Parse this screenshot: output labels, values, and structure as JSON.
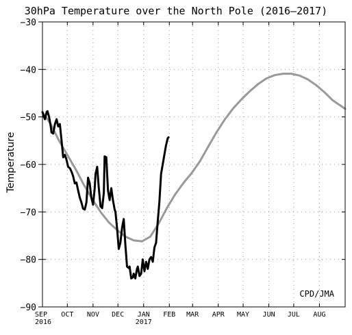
{
  "chart_data": {
    "type": "line",
    "title": "30hPa Temperature over the North Pole (2016–2017)",
    "ylabel": "Temperature",
    "xlabel": "",
    "ylim": [
      -90,
      -30
    ],
    "yticks": [
      -90,
      -80,
      -70,
      -60,
      -50,
      -40,
      -30
    ],
    "xlim": [
      0,
      365
    ],
    "xticks": [
      {
        "label": "SEP",
        "sub": "2016",
        "day": 0
      },
      {
        "label": "OCT",
        "sub": "",
        "day": 30
      },
      {
        "label": "NOV",
        "sub": "",
        "day": 61
      },
      {
        "label": "DEC",
        "sub": "",
        "day": 91
      },
      {
        "label": "JAN",
        "sub": "2017",
        "day": 122
      },
      {
        "label": "FEB",
        "sub": "",
        "day": 153
      },
      {
        "label": "MAR",
        "sub": "",
        "day": 181
      },
      {
        "label": "APR",
        "sub": "",
        "day": 212
      },
      {
        "label": "MAY",
        "sub": "",
        "day": 242
      },
      {
        "label": "JUN",
        "sub": "",
        "day": 273
      },
      {
        "label": "JUL",
        "sub": "",
        "day": 303
      },
      {
        "label": "AUG",
        "sub": "",
        "day": 334
      }
    ],
    "grid": true,
    "credit": "CPD/JMA",
    "series": [
      {
        "color": "#999999",
        "x": [
          0,
          10,
          20,
          30,
          40,
          50,
          60,
          70,
          80,
          90,
          100,
          110,
          120,
          130,
          140,
          150,
          160,
          170,
          180,
          190,
          200,
          210,
          220,
          230,
          240,
          250,
          260,
          270,
          280,
          290,
          300,
          310,
          320,
          330,
          340,
          350,
          365
        ],
        "y": [
          -49,
          -51.5,
          -55,
          -58,
          -61,
          -64.3,
          -67.3,
          -70,
          -72.2,
          -73.8,
          -75.2,
          -76,
          -76.2,
          -75.2,
          -72.5,
          -69.2,
          -66.3,
          -63.9,
          -61.8,
          -59.3,
          -56.2,
          -53.2,
          -50.5,
          -48.2,
          -46.3,
          -44.6,
          -43.1,
          -41.9,
          -41.2,
          -40.9,
          -40.9,
          -41.3,
          -42.1,
          -43.3,
          -44.8,
          -46.5,
          -48.3
        ]
      },
      {
        "color": "#000000",
        "x": [
          0,
          2,
          3,
          5,
          6,
          8,
          10,
          11,
          13,
          15,
          17,
          19,
          21,
          23,
          25,
          27,
          29,
          31,
          33,
          35,
          37,
          39,
          41,
          43,
          45,
          47,
          49,
          51,
          53,
          55,
          57,
          59,
          61,
          63,
          64,
          66,
          68,
          70,
          72,
          74,
          75,
          77,
          79,
          81,
          83,
          85,
          87,
          88,
          90,
          92,
          94,
          96,
          98,
          100,
          102,
          104,
          105,
          107,
          109,
          110,
          112,
          114,
          115,
          117,
          119,
          121,
          123,
          125,
          127,
          129,
          131,
          133,
          135,
          137,
          139,
          141,
          143,
          145,
          147,
          149,
          151,
          152
        ],
        "y": [
          -49,
          -50,
          -50.5,
          -49,
          -48.8,
          -50,
          -52,
          -53.3,
          -53.5,
          -51.5,
          -50.5,
          -52,
          -51.5,
          -55,
          -58.5,
          -58,
          -59,
          -60.5,
          -60.8,
          -61.5,
          -62.5,
          -64,
          -63.8,
          -65.5,
          -67,
          -68,
          -69.3,
          -69.5,
          -68,
          -62.8,
          -64,
          -67,
          -68.5,
          -65,
          -62,
          -60.5,
          -65,
          -68.8,
          -69.2,
          -66,
          -58.3,
          -58.5,
          -65.5,
          -67.5,
          -65,
          -67.5,
          -69.5,
          -70,
          -73.5,
          -77.8,
          -76.5,
          -73.3,
          -71.5,
          -77,
          -81.5,
          -81.8,
          -81.5,
          -84,
          -83.8,
          -83,
          -84,
          -82,
          -81.5,
          -83.5,
          -83,
          -80,
          -82.5,
          -80.5,
          -82,
          -80,
          -79.5,
          -80.5,
          -77.5,
          -76.5,
          -72,
          -68,
          -62,
          -60,
          -58,
          -56,
          -54.5,
          -54.3
        ]
      }
    ]
  }
}
